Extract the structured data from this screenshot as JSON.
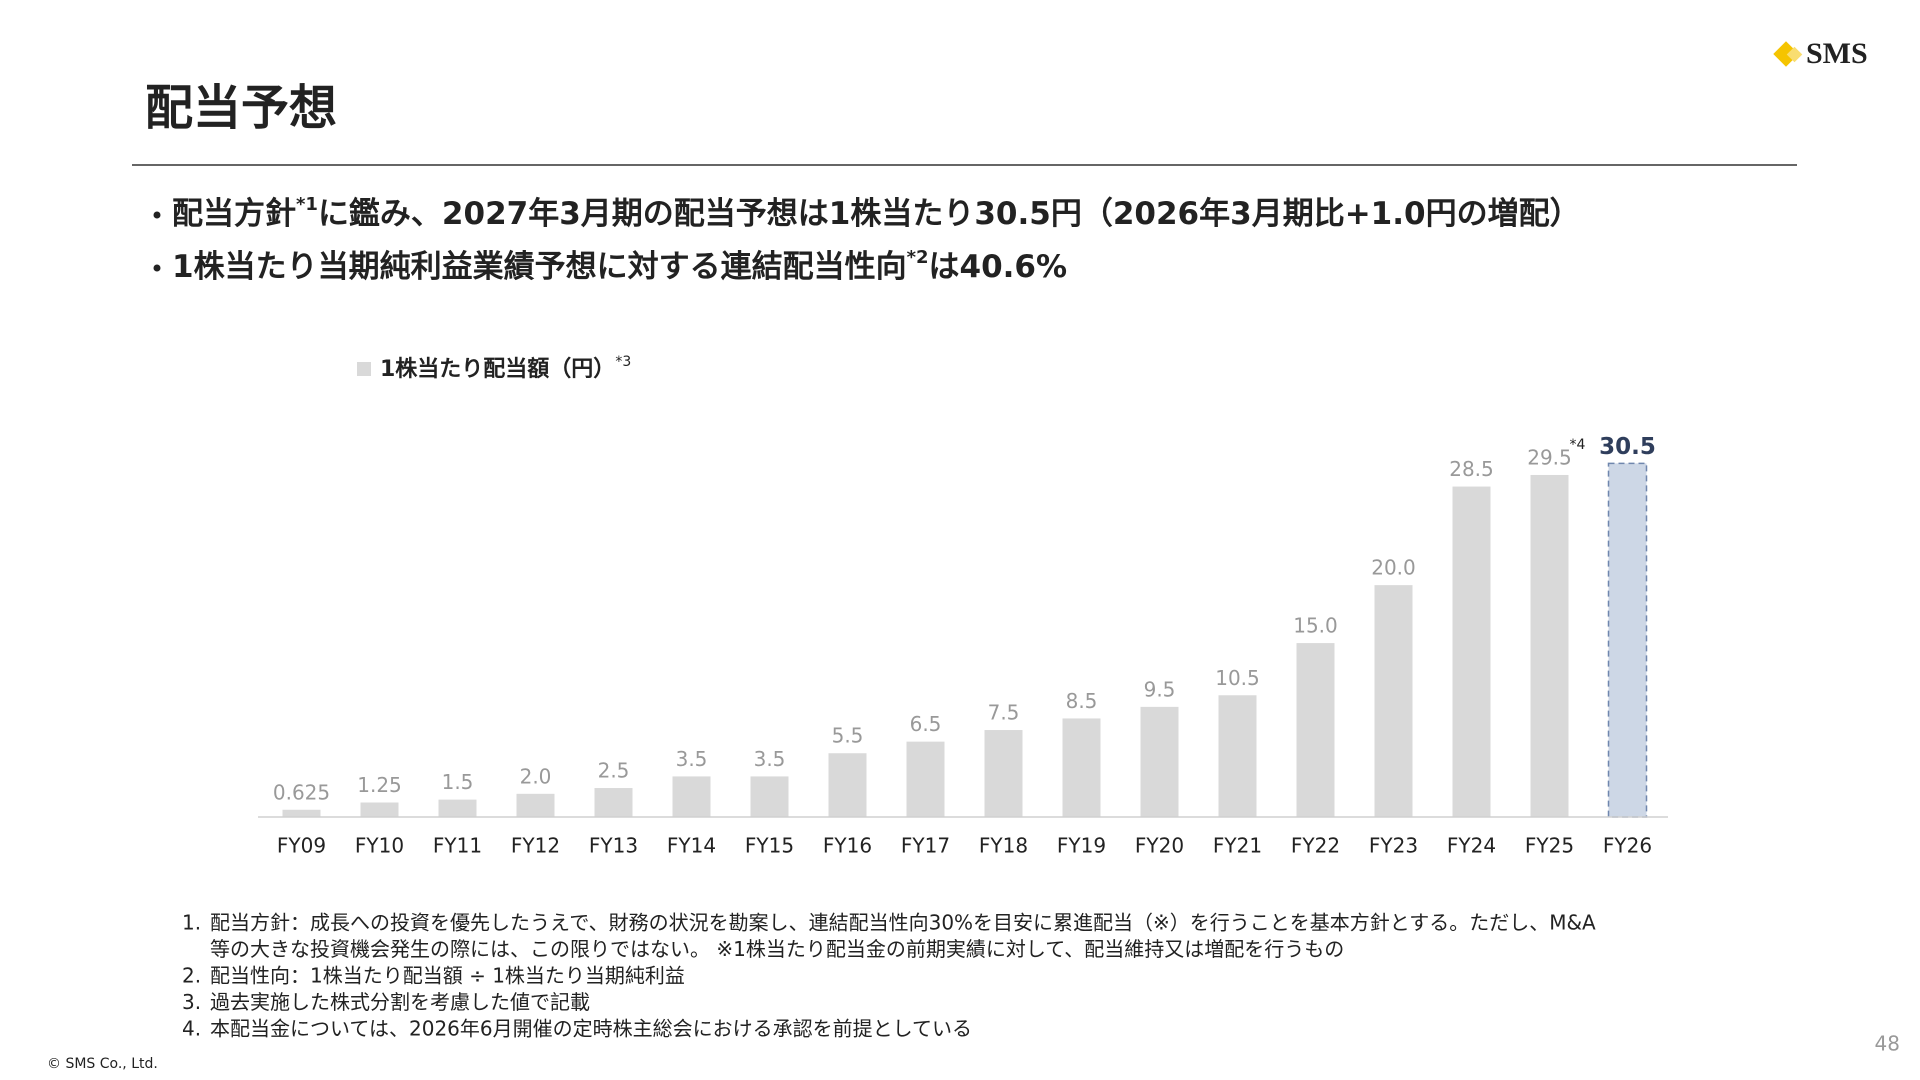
{
  "header": {
    "title": "配当予想",
    "logo": "SMS"
  },
  "bullets": [
    [
      "配当方針",
      "*1",
      "に鑑み、2027年3月期の配当予想は1株当たり30.5円（2026年3月期比+1.0円の増配）"
    ],
    [
      "1株当たり当期純利益業績予想に対する連結配当性向",
      "*2",
      "は40.6%"
    ]
  ],
  "chart_data": {
    "type": "bar",
    "categories": [
      "FY09",
      "FY10",
      "FY11",
      "FY12",
      "FY13",
      "FY14",
      "FY15",
      "FY16",
      "FY17",
      "FY18",
      "FY19",
      "FY20",
      "FY21",
      "FY22",
      "FY23",
      "FY24",
      "FY25",
      "FY26"
    ],
    "series": [
      {
        "name": "1株当たり配当額（円）",
        "name_note": "*3",
        "color": "#d9d9d9",
        "colors": [
          "#d9d9d9",
          "#d9d9d9",
          "#d9d9d9",
          "#d9d9d9",
          "#d9d9d9",
          "#d9d9d9",
          "#d9d9d9",
          "#d9d9d9",
          "#d9d9d9",
          "#d9d9d9",
          "#d9d9d9",
          "#d9d9d9",
          "#d9d9d9",
          "#d9d9d9",
          "#d9d9d9",
          "#d9d9d9",
          "#d9d9d9",
          "#cdd7e6"
        ],
        "values": [
          0.625,
          1.25,
          1.5,
          2,
          2.5,
          3.5,
          3.5,
          5.5,
          6.5,
          7.5,
          8.5,
          9.5,
          10.5,
          15,
          20,
          28.5,
          29.5,
          30.5
        ],
        "value_labels": [
          "0.625",
          "1.25",
          "1.5",
          "2.0",
          "2.5",
          "3.5",
          "3.5",
          "5.5",
          "6.5",
          "7.5",
          "8.5",
          "9.5",
          "10.5",
          "15.0",
          "20.0",
          "28.5",
          "29.5",
          "30.5"
        ]
      }
    ],
    "annotations": [
      {
        "text": "*4",
        "category": "FY25"
      }
    ],
    "ylim": [
      0,
      32
    ]
  },
  "footnotes": [
    {
      "number": "1.",
      "lines": [
        "配当方針：成長への投資を優先したうえで、財務の状況を勘案し、連結配当性向30%を目安に累進配当（※）を行うことを基本方針とする。ただし、M&A",
        "等の大きな投資機会発生の際には、この限りではない。 ※1株当たり配当金の前期実績に対して、配当維持又は増配を行うもの"
      ]
    },
    {
      "number": "2.",
      "lines": [
        "配当性向：1株当たり配当額 ÷ 1株当たり当期純利益"
      ]
    },
    {
      "number": "3.",
      "lines": [
        "過去実施した株式分割を考慮した値で記載"
      ]
    },
    {
      "number": "4.",
      "lines": [
        "本配当金については、2026年6月開催の定時株主総会における承認を前提としている"
      ]
    }
  ],
  "footer": {
    "copyright": "© SMS Co., Ltd.",
    "page": "48"
  }
}
